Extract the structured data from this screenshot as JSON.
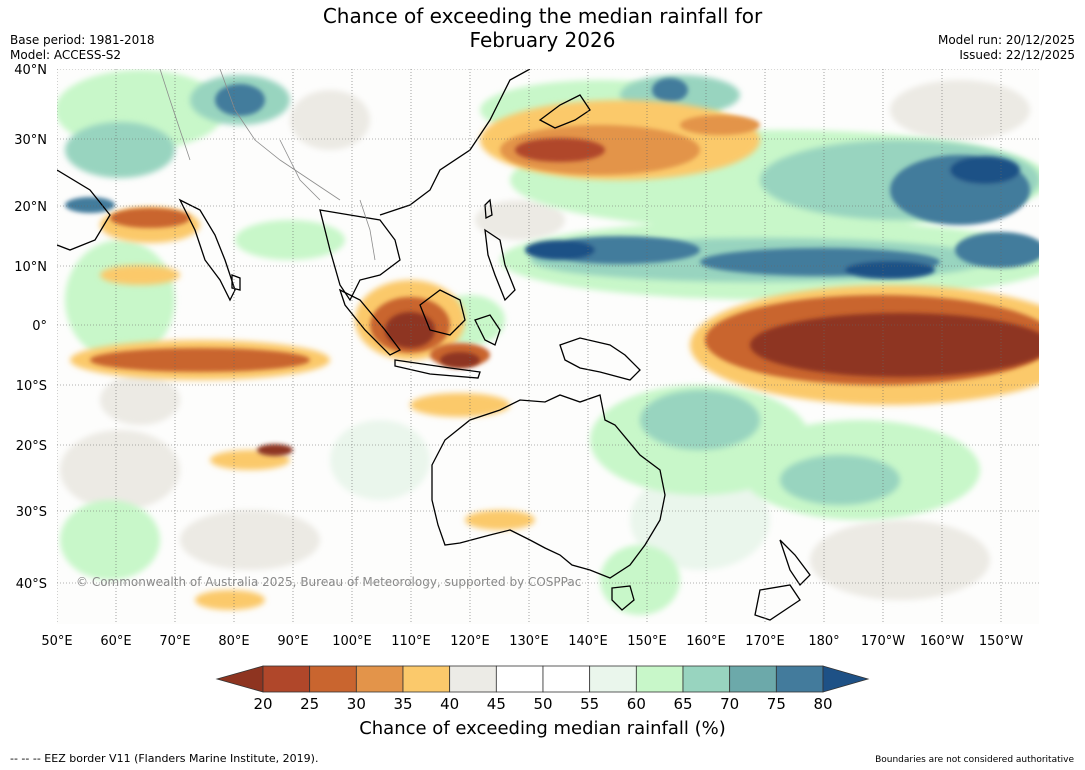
{
  "title_line1": "Chance of exceeding the median rainfall for",
  "title_line2": "February 2026",
  "base_period": "Base period: 1981-2018",
  "model": "Model: ACCESS-S2",
  "model_run": "Model run: 20/12/2025",
  "issued": "Issued: 22/12/2025",
  "lat_labels": [
    "40°N",
    "30°N",
    "20°N",
    "10°N",
    "0°",
    "10°S",
    "20°S",
    "30°S",
    "40°S"
  ],
  "lon_labels": [
    "50°E",
    "60°E",
    "70°E",
    "80°E",
    "90°E",
    "100°E",
    "110°E",
    "120°E",
    "130°E",
    "140°E",
    "150°E",
    "160°E",
    "170°E",
    "180°",
    "170°W",
    "160°W",
    "150°W"
  ],
  "copyright": "© Commonwealth of Australia 2025, Bureau of Meteorology, supported by COSPPac",
  "colorbar": {
    "ticks": [
      "20",
      "25",
      "30",
      "35",
      "40",
      "45",
      "50",
      "55",
      "60",
      "65",
      "70",
      "75",
      "80"
    ],
    "colors": [
      "#8e3420",
      "#b0472a",
      "#c9652f",
      "#e3944a",
      "#fbc96b",
      "#ecebe6",
      "#ffffff",
      "#ffffff",
      "#eaf6ec",
      "#c8f7c9",
      "#98d4bf",
      "#6ca9aa",
      "#437b9c",
      "#1e5186"
    ],
    "label": "Chance of exceeding median rainfall (%)"
  },
  "footer_left": "--  --  -- EEZ border V11 (Flanders Marine Institute, 2019).",
  "footer_right": "Boundaries are not considered authoritative"
}
